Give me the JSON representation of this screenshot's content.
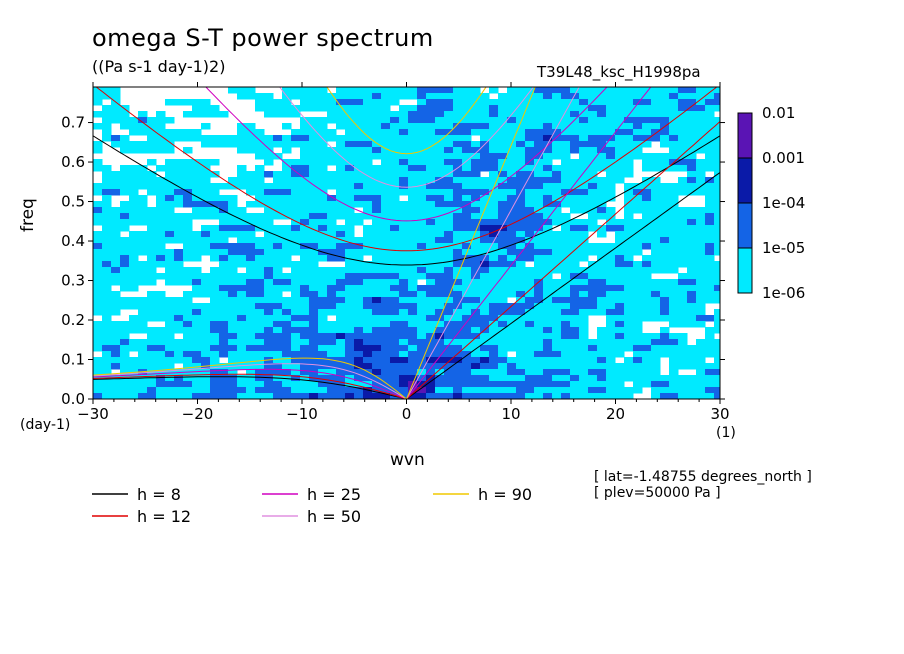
{
  "header": {
    "title": "omega S-T power spectrum",
    "units": "((Pa s-1 day-1)2)",
    "run_id": "T39L48_ksc_H1998pa"
  },
  "axes": {
    "ylabel": "freq",
    "xlabel": "wvn",
    "x_unit_left": "(day-1)",
    "x_unit_right": "(1)"
  },
  "meta": {
    "lat": "[ lat=-1.48755 degrees_north ]",
    "plev": "[ plev=50000 Pa ]"
  },
  "colorbar": {
    "labels": [
      "0.01",
      "0.001",
      "1e-04",
      "1e-05",
      "1e-06"
    ],
    "colors": [
      "#5a14b4",
      "#0a1aa8",
      "#1464e6",
      "#00eaff"
    ]
  },
  "legend": [
    {
      "label": "h =  8",
      "color": "#000000"
    },
    {
      "label": "h = 12",
      "color": "#e00000"
    },
    {
      "label": "h = 25",
      "color": "#d000c0"
    },
    {
      "label": "h = 50",
      "color": "#e090e0"
    },
    {
      "label": "h = 90",
      "color": "#f0c800"
    }
  ],
  "chart_data": {
    "type": "heatmap",
    "title": "omega S-T power spectrum",
    "subtitle": "((Pa s-1 day-1)2)",
    "xlabel": "wvn",
    "ylabel": "freq",
    "xlim": [
      -30,
      30
    ],
    "ylim": [
      0,
      0.79
    ],
    "xticks": [
      -30,
      -20,
      -10,
      0,
      10,
      20,
      30
    ],
    "yticks": [
      0.0,
      0.1,
      0.2,
      0.3,
      0.4,
      0.5,
      0.6,
      0.7
    ],
    "levels": [
      1e-06,
      1e-05,
      0.0001,
      0.001,
      0.01
    ],
    "dispersion_curves": [
      {
        "name": "h =  8",
        "equivalent_depth_m": 8,
        "color": "#000000"
      },
      {
        "name": "h = 12",
        "equivalent_depth_m": 12,
        "color": "#e00000"
      },
      {
        "name": "h = 25",
        "equivalent_depth_m": 25,
        "color": "#d000c0"
      },
      {
        "name": "h = 50",
        "equivalent_depth_m": 50,
        "color": "#e090e0"
      },
      {
        "name": "h = 90",
        "equivalent_depth_m": 90,
        "color": "#f0c800"
      }
    ],
    "grid": false
  }
}
